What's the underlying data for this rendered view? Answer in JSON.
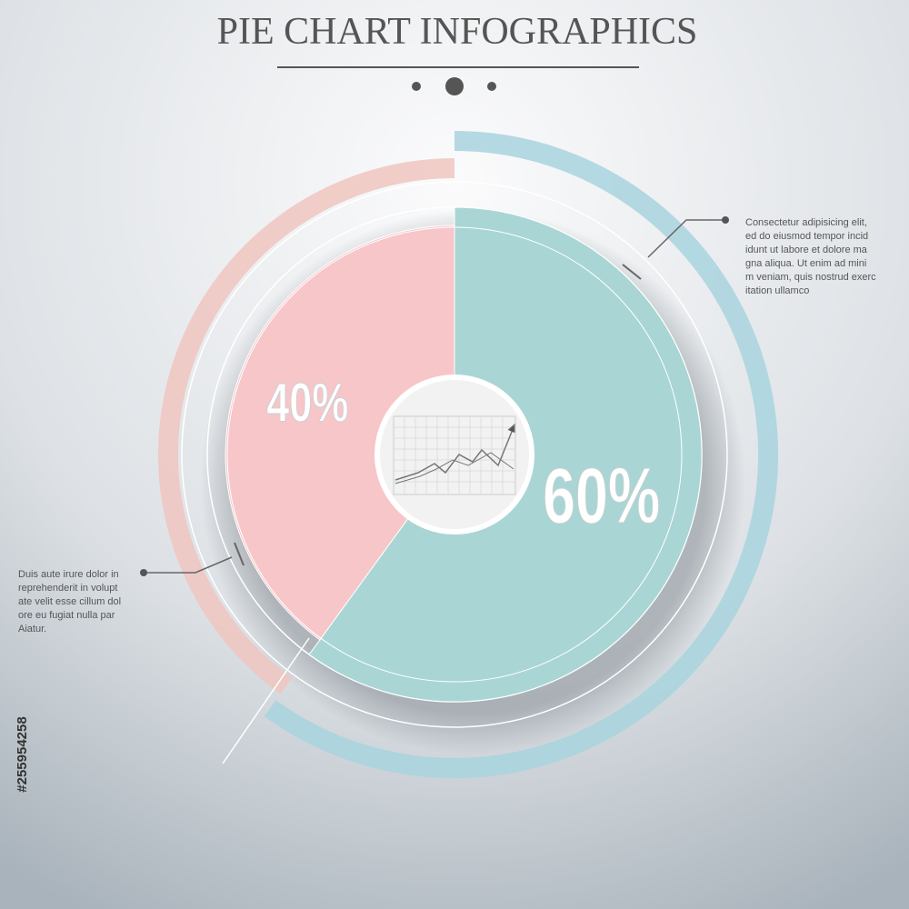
{
  "chart_data": {
    "type": "pie",
    "title": "PIE CHART INFOGRAPHICS",
    "values": [
      60,
      40
    ],
    "value_labels": [
      "60%",
      "40%"
    ],
    "colors": [
      "#a9d6d4",
      "#f7c6c8"
    ],
    "ring_colors": [
      "#a8d3de",
      "#f0c6c0"
    ],
    "annotations": [
      {
        "lines": [
          "Consectetur adipisicing elit,",
          "ed do eiusmod tempor incid",
          "idunt ut labore et dolore ma",
          "gna aliqua. Ut enim ad mini",
          "m veniam, quis nostrud exerc",
          "itation ullamco"
        ]
      },
      {
        "lines": [
          "Duis aute irure dolor in",
          "reprehenderit in volupt",
          "ate velit esse cillum dol",
          "ore eu fugiat nulla par",
          "Aiatur."
        ]
      }
    ],
    "watermark_id": "#255954258"
  }
}
